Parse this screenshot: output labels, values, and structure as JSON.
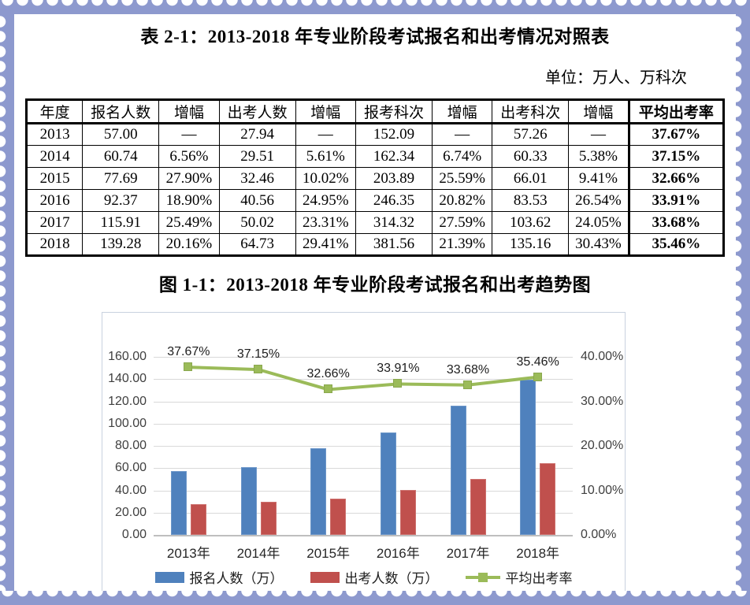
{
  "border": {
    "color": "#8d99ce"
  },
  "table_section": {
    "title": "表 2-1：2013-2018 年专业阶段考试报名和出考情况对照表",
    "unit_note": "单位：万人、万科次",
    "columns": [
      "年度",
      "报名人数",
      "增幅",
      "出考人数",
      "增幅",
      "报考科次",
      "增幅",
      "出考科次",
      "增幅",
      "平均出考率"
    ],
    "rows": [
      [
        "2013",
        "57.00",
        "—",
        "27.94",
        "—",
        "152.09",
        "—",
        "57.26",
        "—",
        "37.67%"
      ],
      [
        "2014",
        "60.74",
        "6.56%",
        "29.51",
        "5.61%",
        "162.34",
        "6.74%",
        "60.33",
        "5.38%",
        "37.15%"
      ],
      [
        "2015",
        "77.69",
        "27.90%",
        "32.46",
        "10.02%",
        "203.89",
        "25.59%",
        "66.01",
        "9.41%",
        "32.66%"
      ],
      [
        "2016",
        "92.37",
        "18.90%",
        "40.56",
        "24.95%",
        "246.35",
        "20.82%",
        "83.53",
        "26.54%",
        "33.91%"
      ],
      [
        "2017",
        "115.91",
        "25.49%",
        "50.02",
        "23.31%",
        "314.32",
        "27.59%",
        "103.62",
        "24.05%",
        "33.68%"
      ],
      [
        "2018",
        "139.28",
        "20.16%",
        "64.73",
        "29.41%",
        "381.56",
        "21.39%",
        "135.16",
        "30.43%",
        "35.46%"
      ]
    ]
  },
  "figure_section": {
    "title": "图 1-1：2013-2018 年专业阶段考试报名和出考趋势图"
  },
  "chart_data": {
    "type": "bar+line combo",
    "categories": [
      "2013年",
      "2014年",
      "2015年",
      "2016年",
      "2017年",
      "2018年"
    ],
    "series": [
      {
        "name": "报名人数（万）",
        "type": "bar",
        "axis": "left",
        "color": "#4F81BD",
        "values": [
          57.0,
          60.74,
          77.69,
          92.37,
          115.91,
          139.28
        ]
      },
      {
        "name": "出考人数（万）",
        "type": "bar",
        "axis": "left",
        "color": "#C0504D",
        "values": [
          27.94,
          29.51,
          32.46,
          40.56,
          50.02,
          64.73
        ]
      },
      {
        "name": "平均出考率",
        "type": "line",
        "axis": "right",
        "color": "#9BBB59",
        "values": [
          37.67,
          37.15,
          32.66,
          33.91,
          33.68,
          35.46
        ],
        "labels": [
          "37.67%",
          "37.15%",
          "32.66%",
          "33.91%",
          "33.68%",
          "35.46%"
        ]
      }
    ],
    "left_axis": {
      "min": 0,
      "max": 160,
      "step": 20,
      "tick_labels": [
        "0.00",
        "20.00",
        "40.00",
        "60.00",
        "80.00",
        "100.00",
        "120.00",
        "140.00",
        "160.00"
      ]
    },
    "right_axis": {
      "min": 0,
      "max": 40,
      "step": 10,
      "tick_labels": [
        "0.00%",
        "10.00%",
        "20.00%",
        "30.00%",
        "40.00%"
      ]
    },
    "grid": true,
    "legend": [
      "报名人数（万）",
      "出考人数（万）",
      "平均出考率"
    ],
    "legend_position": "bottom"
  }
}
